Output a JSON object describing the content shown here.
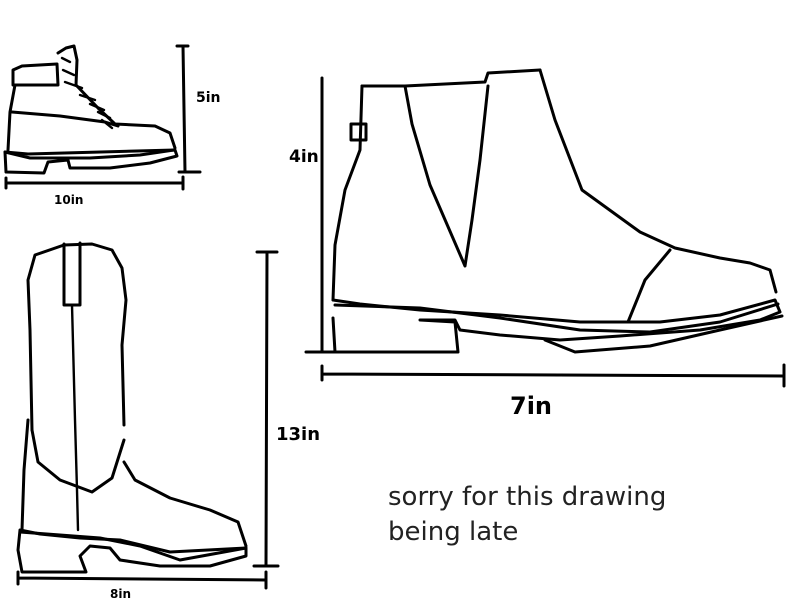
{
  "drawings": {
    "work_boot": {
      "height_label": "5in",
      "length_label": "10in"
    },
    "chelsea_boot": {
      "height_label": "4in",
      "length_label": "7in"
    },
    "cowboy_boot": {
      "height_label": "13in",
      "length_label": "8in"
    }
  },
  "note": {
    "line1": "sorry for this drawing",
    "line2": "being late"
  },
  "colors": {
    "ink": "#000000",
    "note_text": "#222222",
    "background": "#ffffff"
  }
}
